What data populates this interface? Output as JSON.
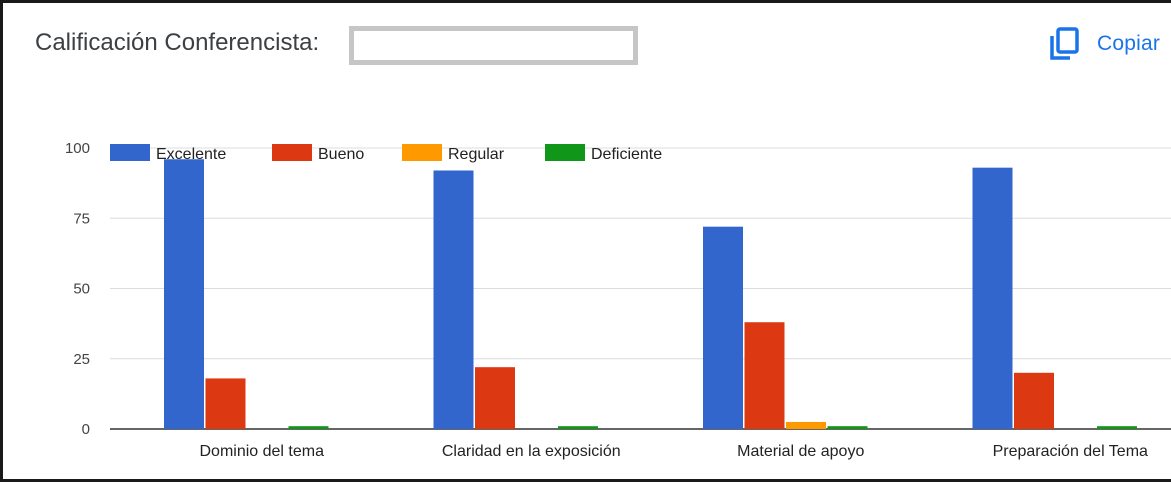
{
  "header": {
    "title": "Calificación Conferencista:",
    "copy_label": "Copiar"
  },
  "colors": {
    "Excelente": "#3366cc",
    "Bueno": "#dc3912",
    "Regular": "#ff9900",
    "Deficiente": "#109618",
    "accent": "#1a73e8"
  },
  "chart_data": {
    "type": "bar",
    "title": "",
    "xlabel": "",
    "ylabel": "",
    "ylim": [
      0,
      100
    ],
    "yticks": [
      0,
      25,
      50,
      75,
      100
    ],
    "grid": true,
    "legend_position": "top-left",
    "categories": [
      "Dominio del tema",
      "Claridad en la exposición",
      "Material de apoyo",
      "Preparación del Tema"
    ],
    "series": [
      {
        "name": "Excelente",
        "values": [
          96,
          92,
          72,
          93
        ]
      },
      {
        "name": "Bueno",
        "values": [
          18,
          22,
          38,
          20
        ]
      },
      {
        "name": "Regular",
        "values": [
          0,
          0,
          2.5,
          0
        ]
      },
      {
        "name": "Deficiente",
        "values": [
          1,
          1,
          1,
          1
        ]
      }
    ]
  }
}
